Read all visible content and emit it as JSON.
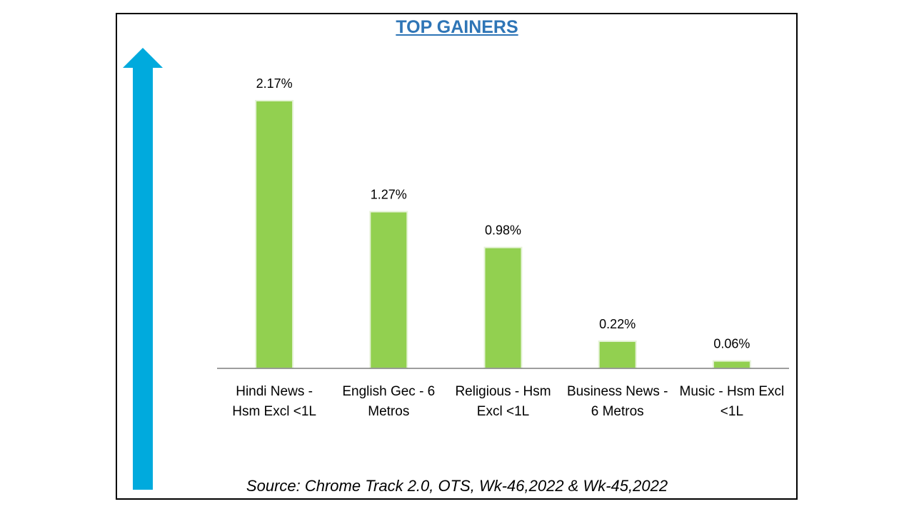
{
  "title": "TOP GAINERS",
  "source": "Source: Chrome Track 2.0, OTS, Wk-46,2022 & Wk-45,2022",
  "colors": {
    "bar": "#92d050",
    "arrow": "#00aadd",
    "title": "#2e75b6",
    "axis": "#7f7f7f"
  },
  "icons": {
    "arrow": "up-arrow-icon"
  },
  "chart_data": {
    "type": "bar",
    "title": "TOP GAINERS",
    "categories": [
      [
        "Hindi News -",
        "Hsm Excl <1L"
      ],
      [
        "English Gec - 6",
        "Metros"
      ],
      [
        "Religious - Hsm",
        "Excl <1L"
      ],
      [
        "Business News -",
        "6 Metros"
      ],
      [
        "Music - Hsm Excl",
        "<1L"
      ]
    ],
    "values": [
      2.17,
      1.27,
      0.98,
      0.22,
      0.06
    ],
    "labels": [
      "2.17%",
      "1.27%",
      "0.98%",
      "0.22%",
      "0.06%"
    ],
    "unit": "%",
    "ylim": [
      0,
      2.17
    ],
    "grid": false,
    "legend": "none"
  }
}
